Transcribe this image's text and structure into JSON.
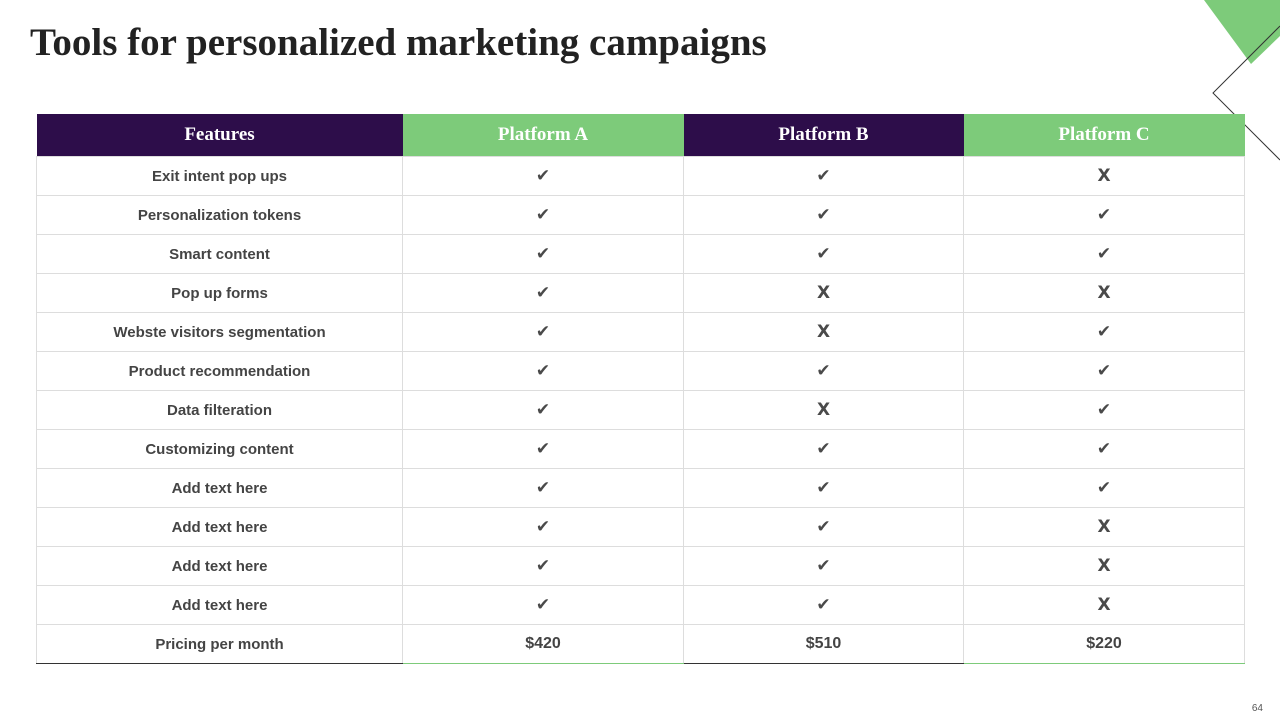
{
  "header": {
    "title": "Tools for personalized marketing campaigns"
  },
  "table": {
    "columns": [
      "Features",
      "Platform A",
      "Platform B",
      "Platform C"
    ],
    "rows": [
      [
        "Exit intent pop ups",
        "✔",
        "✔",
        "X"
      ],
      [
        "Personalization tokens",
        "✔",
        "✔",
        "✔"
      ],
      [
        "Smart content",
        "✔",
        "✔",
        "✔"
      ],
      [
        "Pop up forms",
        "✔",
        "X",
        "X"
      ],
      [
        "Webste visitors segmentation",
        "✔",
        "X",
        "✔"
      ],
      [
        "Product recommendation",
        "✔",
        "✔",
        "✔"
      ],
      [
        "Data filteration",
        "✔",
        "X",
        "✔"
      ],
      [
        "Customizing content",
        "✔",
        "✔",
        "✔"
      ],
      [
        "Add text here",
        "✔",
        "✔",
        "✔"
      ],
      [
        "Add text here",
        "✔",
        "✔",
        "X"
      ],
      [
        "Add text here",
        "✔",
        "✔",
        "X"
      ],
      [
        "Add text here",
        "✔",
        "✔",
        "X"
      ],
      [
        "Pricing per month",
        "$420",
        "$510",
        "$220"
      ]
    ]
  },
  "page_number": "64"
}
